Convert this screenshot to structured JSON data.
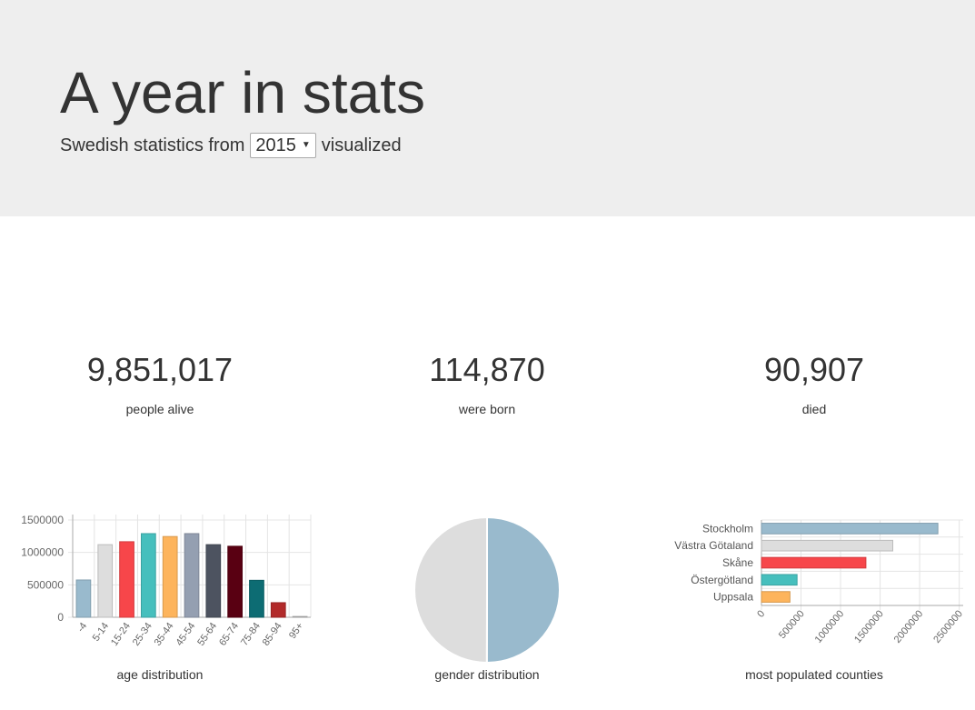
{
  "header": {
    "title": "A year in stats",
    "subtitle_prefix": "Swedish statistics from",
    "year": "2015",
    "subtitle_suffix": "visualized"
  },
  "stats": [
    {
      "value": "9,851,017",
      "label": "people alive"
    },
    {
      "value": "114,870",
      "label": "were born"
    },
    {
      "value": "90,907",
      "label": "died"
    }
  ],
  "chart_data": [
    {
      "type": "bar",
      "title": "age distribution",
      "categories": [
        "-4",
        "5-14",
        "15-24",
        "25-34",
        "35-44",
        "45-54",
        "55-64",
        "65-74",
        "75-84",
        "85-94",
        "95+"
      ],
      "values": [
        575000,
        1120000,
        1165000,
        1290000,
        1245000,
        1290000,
        1120000,
        1095000,
        570000,
        225000,
        12000
      ],
      "colors": [
        "#99bacd",
        "#dddddd",
        "#f7464a",
        "#46bfbd",
        "#fdb45c",
        "#949fb1",
        "#4d5360",
        "#590012",
        "#0d6c73",
        "#b22a2a",
        "#bbbbbb"
      ],
      "yticks": [
        "1500000",
        "1000000",
        "500000",
        "0"
      ],
      "ylim": [
        0,
        1500000
      ],
      "grid": true
    },
    {
      "type": "pie",
      "title": "gender distribution",
      "values": [
        4930000,
        4921017
      ],
      "colors": [
        "#99bacd",
        "#dddddd"
      ]
    },
    {
      "type": "bar",
      "orientation": "horizontal",
      "title": "most populated counties",
      "categories": [
        "Stockholm",
        "Västra Götaland",
        "Skåne",
        "Östergötland",
        "Uppsala"
      ],
      "values": [
        2230000,
        1660000,
        1320000,
        450000,
        360000
      ],
      "colors": [
        "#99bacd",
        "#dddddd",
        "#f7464a",
        "#46bfbd",
        "#fdb45c"
      ],
      "xticks": [
        "0",
        "500000",
        "1000000",
        "1500000",
        "2000000",
        "2500000"
      ],
      "xlim": [
        0,
        2550000
      ],
      "grid": true
    }
  ]
}
